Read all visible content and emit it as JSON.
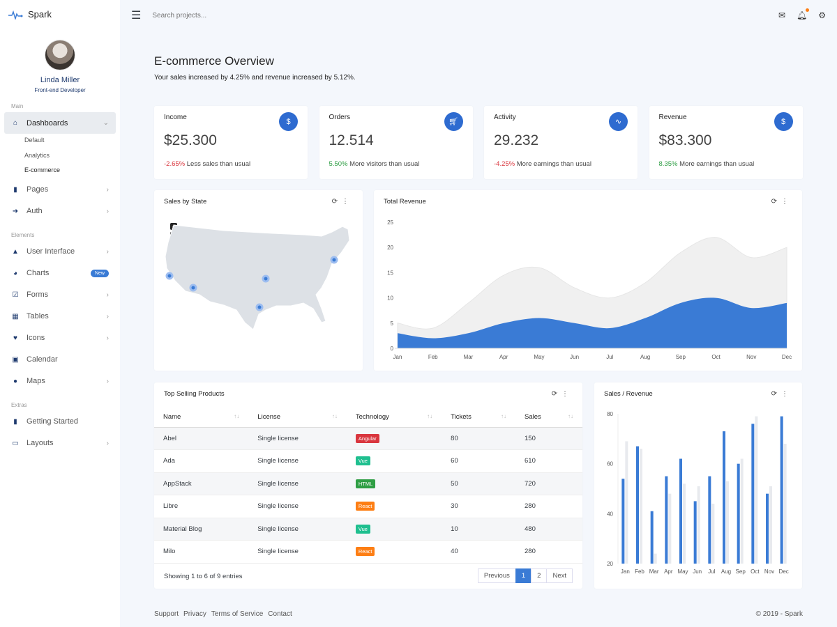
{
  "brand": {
    "name": "Spark"
  },
  "user": {
    "name": "Linda Miller",
    "role": "Front-end Developer"
  },
  "sidebar": {
    "sections": [
      "Main",
      "Elements",
      "Extras"
    ],
    "items": [
      {
        "label": "Dashboards",
        "icon": "home-icon"
      },
      {
        "label": "Pages",
        "icon": "file-icon"
      },
      {
        "label": "Auth",
        "icon": "sign-in-icon"
      },
      {
        "label": "User Interface",
        "icon": "flask-icon"
      },
      {
        "label": "Charts",
        "icon": "pie-chart-icon",
        "badge": "New"
      },
      {
        "label": "Forms",
        "icon": "check-square-icon"
      },
      {
        "label": "Tables",
        "icon": "table-icon"
      },
      {
        "label": "Icons",
        "icon": "heart-icon"
      },
      {
        "label": "Calendar",
        "icon": "calendar-icon"
      },
      {
        "label": "Maps",
        "icon": "map-marker-icon"
      },
      {
        "label": "Getting Started",
        "icon": "book-icon"
      },
      {
        "label": "Layouts",
        "icon": "desktop-icon"
      }
    ],
    "dashboards_sub": [
      "Default",
      "Analytics",
      "E-commerce"
    ]
  },
  "topbar": {
    "search_placeholder": "Search projects..."
  },
  "page": {
    "title": "E-commerce Overview",
    "subtitle": "Your sales increased by 4.25% and revenue increased by 5.12%."
  },
  "stats": [
    {
      "title": "Income",
      "value": "$25.300",
      "delta": "-2.65%",
      "text": "Less sales than usual",
      "icon": "dollar-icon"
    },
    {
      "title": "Orders",
      "value": "12.514",
      "delta": "5.50%",
      "text": "More visitors than usual",
      "icon": "cart-icon"
    },
    {
      "title": "Activity",
      "value": "29.232",
      "delta": "-4.25%",
      "text": "More earnings than usual",
      "icon": "activity-icon"
    },
    {
      "title": "Revenue",
      "value": "$83.300",
      "delta": "8.35%",
      "text": "More earnings than usual",
      "icon": "dollar-icon"
    }
  ],
  "map": {
    "title": "Sales by State",
    "zoom_in": "+",
    "zoom_out": "−"
  },
  "products": {
    "title": "Top Selling Products",
    "columns": [
      "Name",
      "License",
      "Technology",
      "Tickets",
      "Sales"
    ],
    "rows": [
      [
        "Abel",
        "Single license",
        "Angular",
        "80",
        "150"
      ],
      [
        "Ada",
        "Single license",
        "Vue",
        "60",
        "610"
      ],
      [
        "AppStack",
        "Single license",
        "HTML",
        "50",
        "720"
      ],
      [
        "Libre",
        "Single license",
        "React",
        "30",
        "280"
      ],
      [
        "Material Blog",
        "Single license",
        "Vue",
        "10",
        "480"
      ],
      [
        "Milo",
        "Single license",
        "React",
        "40",
        "280"
      ]
    ],
    "tech_colors": {
      "Angular": "#d9363e",
      "Vue": "#1fbf8f",
      "HTML": "#2e9e44",
      "React": "#fd7e14"
    },
    "info": "Showing 1 to 6 of 9 entries",
    "pager": [
      "Previous",
      "1",
      "2",
      "Next"
    ]
  },
  "footer": {
    "links": [
      "Support",
      "Privacy",
      "Terms of Service",
      "Contact"
    ],
    "copyright": "© 2019 - Spark"
  },
  "chart_data": [
    {
      "type": "area",
      "title": "Total Revenue",
      "categories": [
        "Jan",
        "Feb",
        "Mar",
        "Apr",
        "May",
        "Jun",
        "Jul",
        "Aug",
        "Sep",
        "Oct",
        "Nov",
        "Dec"
      ],
      "ylim": [
        0,
        25
      ],
      "yticks": [
        0,
        5,
        10,
        15,
        20,
        25
      ],
      "series": [
        {
          "values": [
            5,
            4,
            9,
            14.5,
            16,
            12,
            10,
            13,
            19,
            22,
            18,
            20
          ],
          "color": "#f0f0f0"
        },
        {
          "values": [
            3,
            2,
            3,
            5,
            6,
            5,
            4,
            6,
            9,
            10,
            8,
            9
          ],
          "color": "#3a7bd5"
        }
      ]
    },
    {
      "type": "bar",
      "title": "Sales / Revenue",
      "categories": [
        "Jan",
        "Feb",
        "Mar",
        "Apr",
        "May",
        "Jun",
        "Jul",
        "Aug",
        "Sep",
        "Oct",
        "Nov",
        "Dec"
      ],
      "ylim": [
        20,
        80
      ],
      "yticks": [
        20,
        40,
        60,
        80
      ],
      "series": [
        {
          "values": [
            54,
            67,
            41,
            55,
            62,
            45,
            55,
            73,
            60,
            76,
            48,
            79
          ],
          "color": "#3a7bd5"
        },
        {
          "values": [
            69,
            66,
            24,
            48,
            52,
            51,
            44,
            53,
            62,
            79,
            51,
            68
          ],
          "color": "#e8eaee"
        }
      ]
    }
  ]
}
